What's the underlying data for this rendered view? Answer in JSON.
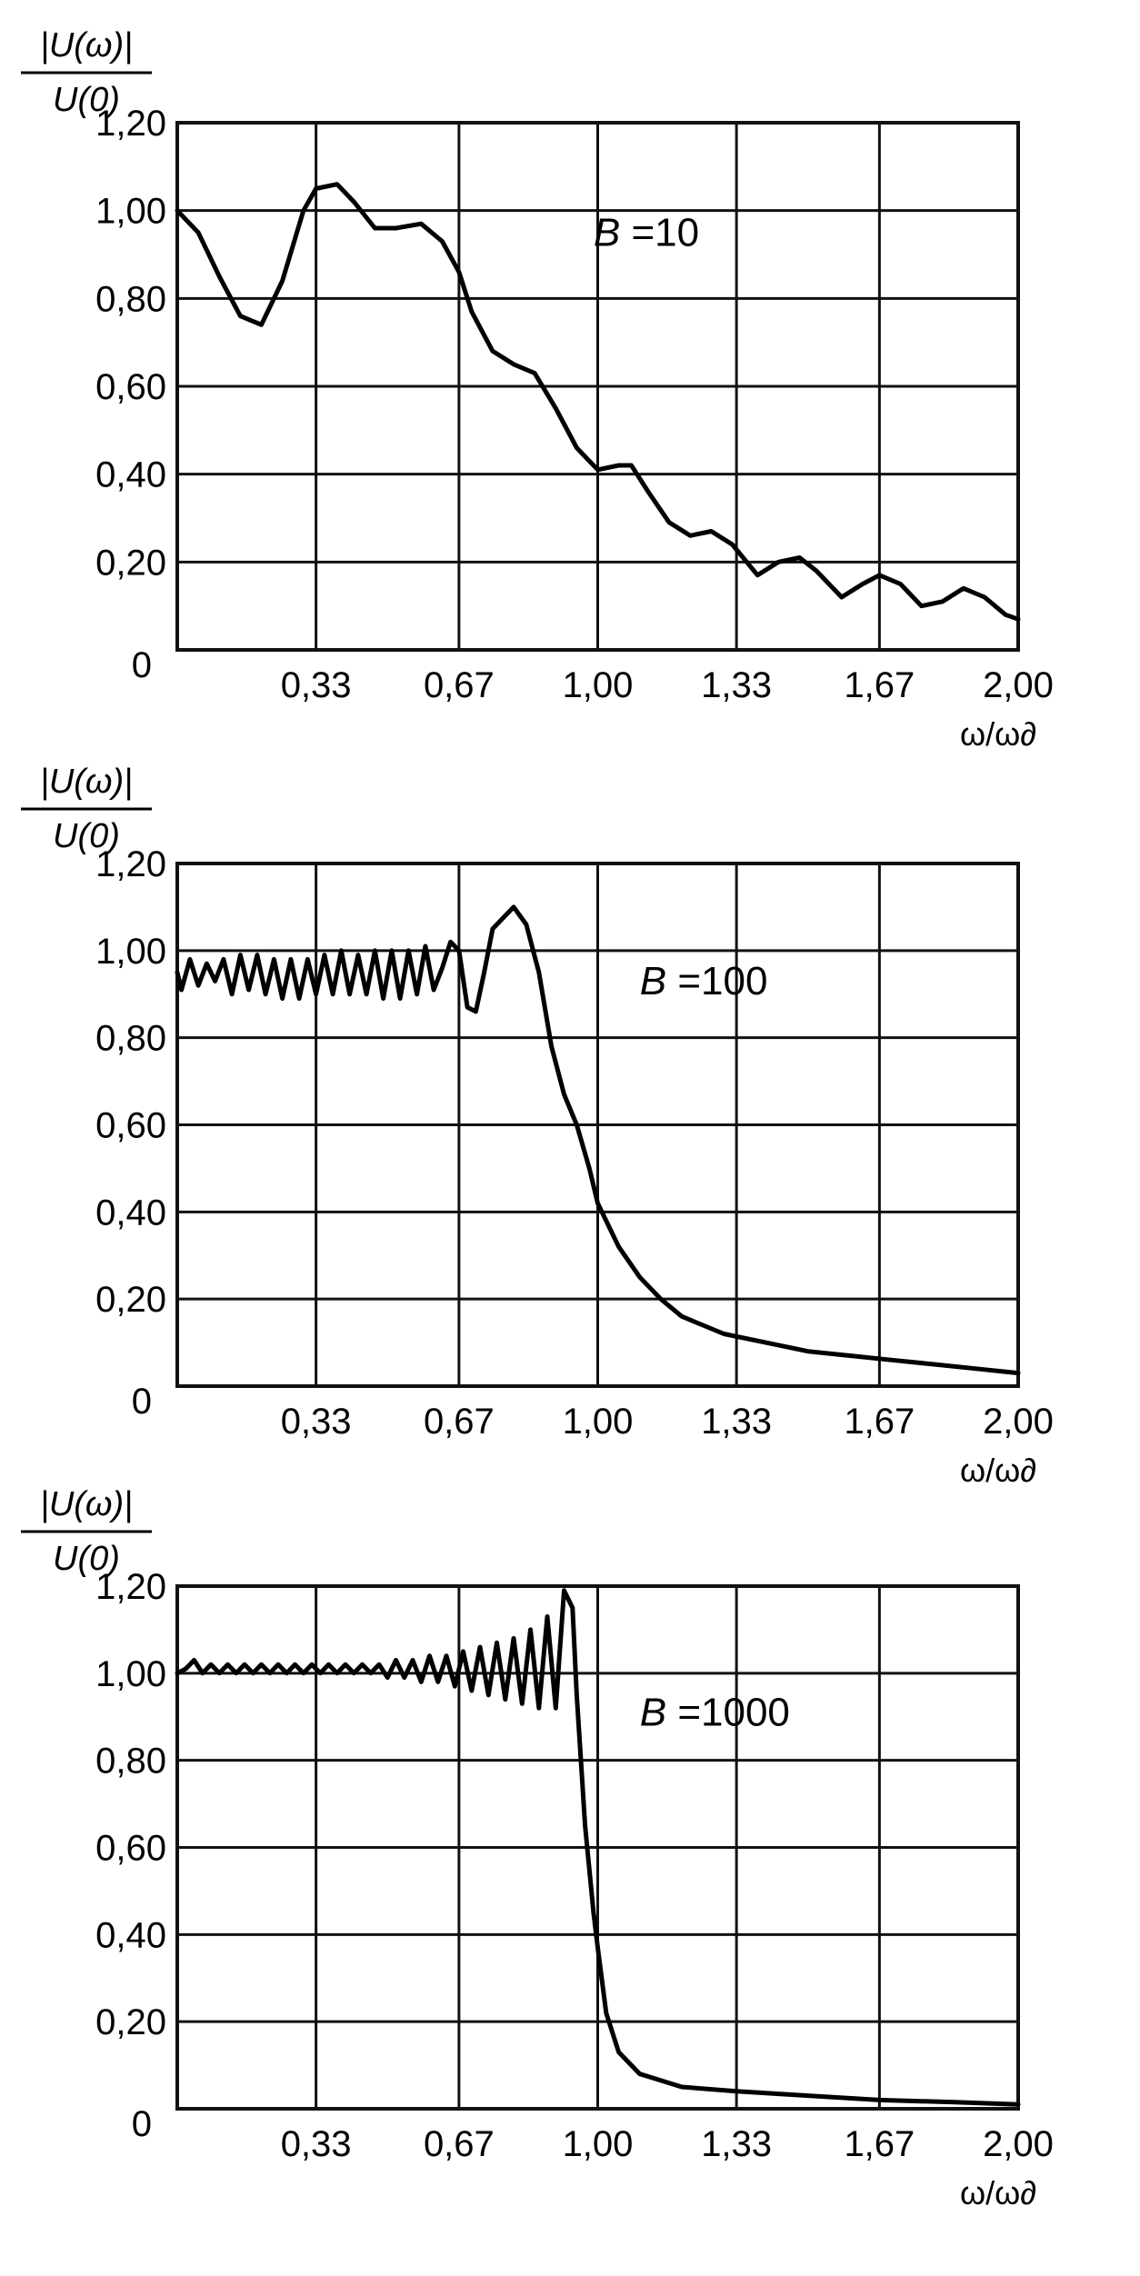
{
  "chart_data": [
    {
      "type": "line",
      "ylabel_num": "|U(ω)|",
      "ylabel_den": "U(0)",
      "xlabel": "ω/ω∂",
      "annotation": "B =10",
      "ylim": [
        0,
        1.2
      ],
      "xlim": [
        0,
        2.0
      ],
      "y_tick_labels": [
        "0",
        "0,20",
        "0,40",
        "0,60",
        "0,80",
        "1,00",
        "1,20"
      ],
      "x_tick_labels": [
        "0,33",
        "0,67",
        "1,00",
        "1,33",
        "1,67",
        "2,00"
      ],
      "grid": true,
      "series": [
        {
          "x": [
            0,
            0.05,
            0.1,
            0.15,
            0.2,
            0.25,
            0.3,
            0.33,
            0.38,
            0.42,
            0.47,
            0.52,
            0.58,
            0.63,
            0.67,
            0.7,
            0.75,
            0.8,
            0.85,
            0.9,
            0.95,
            1.0,
            1.05,
            1.08,
            1.12,
            1.17,
            1.22,
            1.27,
            1.32,
            1.38,
            1.43,
            1.48,
            1.52,
            1.58,
            1.63,
            1.67,
            1.72,
            1.77,
            1.82,
            1.87,
            1.92,
            1.97,
            2.0
          ],
          "y": [
            1.0,
            0.95,
            0.85,
            0.76,
            0.74,
            0.84,
            1.0,
            1.05,
            1.06,
            1.02,
            0.96,
            0.96,
            0.97,
            0.93,
            0.86,
            0.77,
            0.68,
            0.65,
            0.63,
            0.55,
            0.46,
            0.41,
            0.42,
            0.42,
            0.36,
            0.29,
            0.26,
            0.27,
            0.24,
            0.17,
            0.2,
            0.21,
            0.18,
            0.12,
            0.15,
            0.17,
            0.15,
            0.1,
            0.11,
            0.14,
            0.12,
            0.08,
            0.07
          ]
        }
      ]
    },
    {
      "type": "line",
      "ylabel_num": "|U(ω)|",
      "ylabel_den": "U(0)",
      "xlabel": "ω/ω∂",
      "annotation": "B =100",
      "ylim": [
        0,
        1.2
      ],
      "xlim": [
        0,
        2.0
      ],
      "y_tick_labels": [
        "0",
        "0,20",
        "0,40",
        "0,60",
        "0,80",
        "1,00",
        "1,20"
      ],
      "x_tick_labels": [
        "0,33",
        "0,67",
        "1,00",
        "1,33",
        "1,67",
        "2,00"
      ],
      "grid": true,
      "series": [
        {
          "x": [
            0,
            0.01,
            0.03,
            0.05,
            0.07,
            0.09,
            0.11,
            0.13,
            0.15,
            0.17,
            0.19,
            0.21,
            0.23,
            0.25,
            0.27,
            0.29,
            0.31,
            0.33,
            0.35,
            0.37,
            0.39,
            0.41,
            0.43,
            0.45,
            0.47,
            0.49,
            0.51,
            0.53,
            0.55,
            0.57,
            0.59,
            0.61,
            0.63,
            0.65,
            0.67,
            0.69,
            0.71,
            0.73,
            0.75,
            0.77,
            0.8,
            0.83,
            0.86,
            0.89,
            0.92,
            0.95,
            0.98,
            1.0,
            1.05,
            1.1,
            1.15,
            1.2,
            1.3,
            1.4,
            1.5,
            1.6,
            1.7,
            1.8,
            1.9,
            2.0
          ],
          "y": [
            0.95,
            0.91,
            0.98,
            0.92,
            0.97,
            0.93,
            0.98,
            0.9,
            0.99,
            0.91,
            0.99,
            0.9,
            0.98,
            0.89,
            0.98,
            0.89,
            0.98,
            0.9,
            0.99,
            0.9,
            1.0,
            0.9,
            0.99,
            0.9,
            1.0,
            0.89,
            1.0,
            0.89,
            1.0,
            0.9,
            1.01,
            0.91,
            0.96,
            1.02,
            1.0,
            0.87,
            0.86,
            0.95,
            1.05,
            1.07,
            1.1,
            1.06,
            0.95,
            0.78,
            0.67,
            0.6,
            0.5,
            0.42,
            0.32,
            0.25,
            0.2,
            0.16,
            0.12,
            0.1,
            0.08,
            0.07,
            0.06,
            0.05,
            0.04,
            0.03
          ]
        }
      ]
    },
    {
      "type": "line",
      "ylabel_num": "|U(ω)|",
      "ylabel_den": "U(0)",
      "xlabel": "ω/ω∂",
      "annotation": "B =1000",
      "ylim": [
        0,
        1.2
      ],
      "xlim": [
        0,
        2.0
      ],
      "y_tick_labels": [
        "0",
        "0,20",
        "0,40",
        "0,60",
        "0,80",
        "1,00",
        "1,20"
      ],
      "x_tick_labels": [
        "0,33",
        "0,67",
        "1,00",
        "1,33",
        "1,67",
        "2,00"
      ],
      "grid": true,
      "series": [
        {
          "x": [
            0,
            0.02,
            0.04,
            0.06,
            0.08,
            0.1,
            0.12,
            0.14,
            0.16,
            0.18,
            0.2,
            0.22,
            0.24,
            0.26,
            0.28,
            0.3,
            0.32,
            0.34,
            0.36,
            0.38,
            0.4,
            0.42,
            0.44,
            0.46,
            0.48,
            0.5,
            0.52,
            0.54,
            0.56,
            0.58,
            0.6,
            0.62,
            0.64,
            0.66,
            0.68,
            0.7,
            0.72,
            0.74,
            0.76,
            0.78,
            0.8,
            0.82,
            0.84,
            0.86,
            0.88,
            0.9,
            0.92,
            0.94,
            0.95,
            0.97,
            0.99,
            1.0,
            1.02,
            1.05,
            1.1,
            1.2,
            1.33,
            1.5,
            1.67,
            1.85,
            2.0
          ],
          "y": [
            1.0,
            1.01,
            1.03,
            1.0,
            1.02,
            1.0,
            1.02,
            1.0,
            1.02,
            1.0,
            1.02,
            1.0,
            1.02,
            1.0,
            1.02,
            1.0,
            1.02,
            1.0,
            1.02,
            1.0,
            1.02,
            1.0,
            1.02,
            1.0,
            1.02,
            0.99,
            1.03,
            0.99,
            1.03,
            0.98,
            1.04,
            0.98,
            1.04,
            0.97,
            1.05,
            0.96,
            1.06,
            0.95,
            1.07,
            0.94,
            1.08,
            0.93,
            1.1,
            0.92,
            1.13,
            0.92,
            1.19,
            1.15,
            0.95,
            0.65,
            0.45,
            0.37,
            0.22,
            0.13,
            0.08,
            0.05,
            0.04,
            0.03,
            0.02,
            0.015,
            0.01
          ]
        }
      ]
    }
  ]
}
